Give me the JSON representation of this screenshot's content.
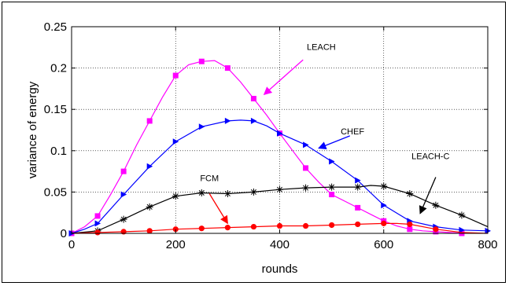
{
  "chart_data": {
    "type": "line",
    "title": "",
    "xlabel": "rounds",
    "ylabel": "variance of energy",
    "xlim": [
      0,
      800
    ],
    "ylim": [
      0,
      0.25
    ],
    "xticks": [
      0,
      200,
      400,
      600,
      800
    ],
    "yticks": [
      0,
      0.05,
      0.1,
      0.15,
      0.2,
      0.25
    ],
    "xtick_labels": [
      "0",
      "200",
      "400",
      "600",
      "800"
    ],
    "ytick_labels": [
      "0",
      "0.05",
      "0.1",
      "0.15",
      "0.2",
      "0.25"
    ],
    "grid": true,
    "legend": "none",
    "series": [
      {
        "name": "LEACH",
        "color": "#ff00ff",
        "marker": "square",
        "points": [
          [
            0,
            0
          ],
          [
            25,
            0.008
          ],
          [
            50,
            0.021
          ],
          [
            75,
            0.047
          ],
          [
            100,
            0.075
          ],
          [
            125,
            0.107
          ],
          [
            150,
            0.136
          ],
          [
            175,
            0.165
          ],
          [
            200,
            0.191
          ],
          [
            225,
            0.204
          ],
          [
            250,
            0.208
          ],
          [
            275,
            0.209
          ],
          [
            300,
            0.2
          ],
          [
            325,
            0.183
          ],
          [
            350,
            0.163
          ],
          [
            375,
            0.143
          ],
          [
            400,
            0.121
          ],
          [
            425,
            0.1
          ],
          [
            450,
            0.079
          ],
          [
            475,
            0.062
          ],
          [
            500,
            0.047
          ],
          [
            525,
            0.039
          ],
          [
            550,
            0.031
          ],
          [
            575,
            0.023
          ],
          [
            600,
            0.015
          ],
          [
            625,
            0.009
          ],
          [
            650,
            0.005
          ],
          [
            675,
            0.003
          ],
          [
            700,
            0.002
          ],
          [
            725,
            0.001
          ],
          [
            750,
            0
          ]
        ],
        "markers_at": [
          [
            0,
            0
          ],
          [
            50,
            0.021
          ],
          [
            100,
            0.075
          ],
          [
            150,
            0.136
          ],
          [
            200,
            0.191
          ],
          [
            250,
            0.208
          ],
          [
            300,
            0.2
          ],
          [
            350,
            0.163
          ],
          [
            400,
            0.121
          ],
          [
            450,
            0.079
          ],
          [
            500,
            0.047
          ],
          [
            550,
            0.031
          ],
          [
            600,
            0.015
          ],
          [
            650,
            0.005
          ],
          [
            700,
            0.002
          ],
          [
            750,
            0
          ]
        ]
      },
      {
        "name": "CHEF",
        "color": "#0000ff",
        "marker": "triangle-right",
        "points": [
          [
            0,
            0
          ],
          [
            25,
            0.005
          ],
          [
            50,
            0.012
          ],
          [
            100,
            0.047
          ],
          [
            150,
            0.081
          ],
          [
            200,
            0.111
          ],
          [
            250,
            0.129
          ],
          [
            300,
            0.136
          ],
          [
            325,
            0.137
          ],
          [
            350,
            0.136
          ],
          [
            375,
            0.13
          ],
          [
            400,
            0.121
          ],
          [
            450,
            0.107
          ],
          [
            500,
            0.087
          ],
          [
            550,
            0.064
          ],
          [
            600,
            0.034
          ],
          [
            650,
            0.015
          ],
          [
            700,
            0.008
          ],
          [
            750,
            0.004
          ],
          [
            800,
            0.003
          ]
        ],
        "markers_at": [
          [
            0,
            0
          ],
          [
            50,
            0.012
          ],
          [
            100,
            0.047
          ],
          [
            150,
            0.081
          ],
          [
            200,
            0.111
          ],
          [
            250,
            0.129
          ],
          [
            300,
            0.136
          ],
          [
            350,
            0.136
          ],
          [
            400,
            0.121
          ],
          [
            450,
            0.107
          ],
          [
            500,
            0.087
          ],
          [
            550,
            0.064
          ],
          [
            600,
            0.034
          ],
          [
            650,
            0.015
          ],
          [
            700,
            0.008
          ],
          [
            750,
            0.004
          ],
          [
            800,
            0.003
          ]
        ]
      },
      {
        "name": "LEACH-C",
        "color": "#000000",
        "marker": "asterisk",
        "points": [
          [
            0,
            0
          ],
          [
            50,
            0.003
          ],
          [
            100,
            0.017
          ],
          [
            150,
            0.032
          ],
          [
            200,
            0.045
          ],
          [
            250,
            0.049
          ],
          [
            300,
            0.048
          ],
          [
            350,
            0.05
          ],
          [
            400,
            0.053
          ],
          [
            450,
            0.055
          ],
          [
            500,
            0.056
          ],
          [
            550,
            0.056
          ],
          [
            575,
            0.058
          ],
          [
            600,
            0.057
          ],
          [
            650,
            0.048
          ],
          [
            700,
            0.034
          ],
          [
            750,
            0.022
          ],
          [
            800,
            0.008
          ]
        ],
        "markers_at": [
          [
            50,
            0.003
          ],
          [
            100,
            0.017
          ],
          [
            150,
            0.032
          ],
          [
            200,
            0.045
          ],
          [
            250,
            0.049
          ],
          [
            300,
            0.048
          ],
          [
            350,
            0.05
          ],
          [
            400,
            0.053
          ],
          [
            450,
            0.055
          ],
          [
            500,
            0.056
          ],
          [
            550,
            0.056
          ],
          [
            600,
            0.057
          ],
          [
            650,
            0.048
          ],
          [
            700,
            0.034
          ],
          [
            750,
            0.022
          ]
        ]
      },
      {
        "name": "FCM",
        "color": "#ff0000",
        "marker": "circle",
        "points": [
          [
            0,
            0
          ],
          [
            50,
            0.001
          ],
          [
            100,
            0.002
          ],
          [
            150,
            0.003
          ],
          [
            200,
            0.005
          ],
          [
            250,
            0.006
          ],
          [
            300,
            0.007
          ],
          [
            350,
            0.008
          ],
          [
            400,
            0.009
          ],
          [
            450,
            0.009
          ],
          [
            500,
            0.01
          ],
          [
            550,
            0.011
          ],
          [
            600,
            0.012
          ],
          [
            625,
            0.012
          ],
          [
            650,
            0.011
          ],
          [
            700,
            0.005
          ],
          [
            750,
            0.001
          ],
          [
            800,
            0
          ]
        ],
        "markers_at": [
          [
            50,
            0.001
          ],
          [
            100,
            0.002
          ],
          [
            150,
            0.003
          ],
          [
            200,
            0.005
          ],
          [
            250,
            0.006
          ],
          [
            300,
            0.007
          ],
          [
            350,
            0.008
          ],
          [
            400,
            0.009
          ],
          [
            450,
            0.009
          ],
          [
            500,
            0.01
          ],
          [
            550,
            0.011
          ],
          [
            600,
            0.012
          ],
          [
            650,
            0.011
          ],
          [
            700,
            0.005
          ]
        ]
      }
    ],
    "annotations": [
      {
        "text": "LEACH",
        "color": "#ff00ff",
        "text_at": [
          480,
          0.222
        ],
        "arrow_from": [
          445,
          0.21
        ],
        "arrow_to": [
          370,
          0.168
        ]
      },
      {
        "text": "CHEF",
        "color": "#0000ff",
        "text_at": [
          540,
          0.12
        ],
        "arrow_from": [
          535,
          0.118
        ],
        "arrow_to": [
          475,
          0.103
        ]
      },
      {
        "text": "LEACH-C",
        "color": "#000000",
        "text_at": [
          690,
          0.09
        ],
        "arrow_from": [
          700,
          0.068
        ],
        "arrow_to": [
          670,
          0.024
        ]
      },
      {
        "text": "FCM",
        "color": "#ff0000",
        "text_at": [
          265,
          0.063
        ],
        "arrow_from": [
          265,
          0.048
        ],
        "arrow_to": [
          300,
          0.012
        ]
      }
    ]
  }
}
